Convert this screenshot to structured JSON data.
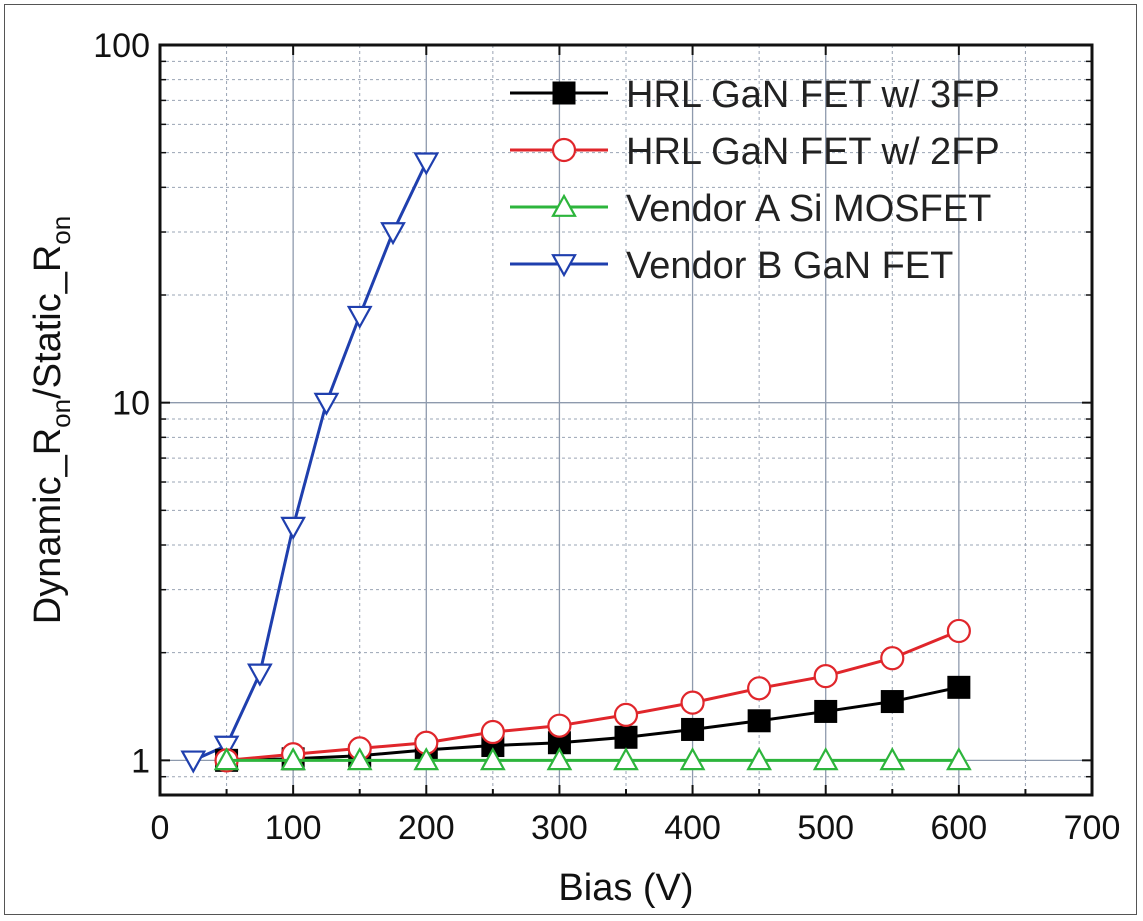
{
  "chart_data": {
    "type": "line",
    "xlabel": "Bias (V)",
    "ylabel": "Dynamic_Ron/Static_Ron",
    "ylabel_parts": {
      "a": "Dynamic_R",
      "a_sub": "on",
      "b": "/Static_R",
      "b_sub": "on"
    },
    "xlim": [
      0,
      700
    ],
    "ylim": [
      0.8,
      100
    ],
    "yscale": "log",
    "x_ticks": [
      0,
      100,
      200,
      300,
      400,
      500,
      600,
      700
    ],
    "y_ticks": [
      1,
      10,
      100
    ],
    "x_tick_labels": [
      "0",
      "100",
      "200",
      "300",
      "400",
      "500",
      "600",
      "700"
    ],
    "y_tick_labels": [
      "1",
      "10",
      "100"
    ],
    "grid": true,
    "legend_position": "top-right",
    "series": [
      {
        "name": "HRL GaN FET w/ 3FP",
        "color": "#000000",
        "marker": "square-filled",
        "x": [
          50,
          100,
          150,
          200,
          250,
          300,
          350,
          400,
          450,
          500,
          550,
          600
        ],
        "y": [
          1.0,
          1.01,
          1.03,
          1.07,
          1.1,
          1.12,
          1.16,
          1.22,
          1.29,
          1.37,
          1.46,
          1.6
        ]
      },
      {
        "name": "HRL GaN FET w/ 2FP",
        "color": "#e0262b",
        "marker": "circle-open",
        "x": [
          50,
          100,
          150,
          200,
          250,
          300,
          350,
          400,
          450,
          500,
          550,
          600
        ],
        "y": [
          1.0,
          1.04,
          1.08,
          1.12,
          1.2,
          1.25,
          1.34,
          1.45,
          1.59,
          1.72,
          1.93,
          2.3
        ]
      },
      {
        "name": "Vendor A Si MOSFET",
        "color": "#2db53c",
        "marker": "triangle-up-open",
        "x": [
          50,
          100,
          150,
          200,
          250,
          300,
          350,
          400,
          450,
          500,
          550,
          600
        ],
        "y": [
          1.0,
          1.0,
          1.0,
          1.0,
          1.0,
          1.0,
          1.0,
          1.0,
          1.0,
          1.0,
          1.0,
          1.0
        ]
      },
      {
        "name": "Vendor B GaN FET",
        "color": "#1f3fae",
        "marker": "triangle-down-open",
        "x": [
          25,
          50,
          75,
          100,
          125,
          150,
          175,
          200
        ],
        "y": [
          1.0,
          1.1,
          1.75,
          4.5,
          10,
          17.5,
          30,
          47
        ]
      }
    ]
  }
}
